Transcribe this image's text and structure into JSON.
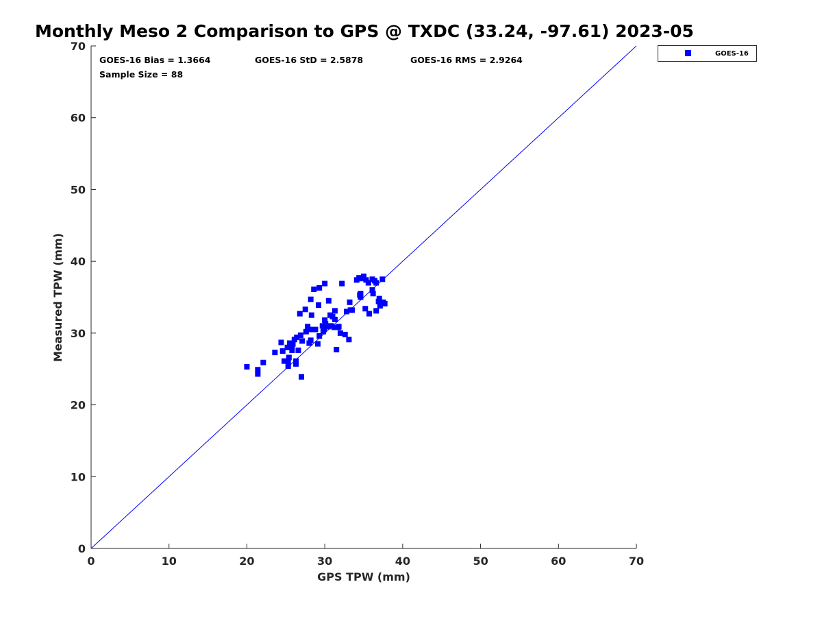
{
  "chart_data": {
    "type": "scatter",
    "title": "Monthly Meso 2 Comparison to GPS @ TXDC (33.24, -97.61) 2023-05",
    "xlabel": "GPS TPW (mm)",
    "ylabel": "Measured TPW (mm)",
    "xlim": [
      0,
      70
    ],
    "ylim": [
      0,
      70
    ],
    "xticks": [
      "0",
      "10",
      "20",
      "30",
      "40",
      "50",
      "60",
      "70"
    ],
    "yticks": [
      "0",
      "10",
      "20",
      "30",
      "40",
      "50",
      "60",
      "70"
    ],
    "grid": false,
    "legend": {
      "position": "outside-top-right",
      "entries": [
        "GOES-16"
      ]
    },
    "stats": {
      "bias": "GOES-16 Bias = 1.3664",
      "std": "GOES-16 StD = 2.5878",
      "rms": "GOES-16 RMS = 2.9264",
      "sample_size": "Sample Size = 88"
    },
    "reference_line": {
      "from": [
        0,
        0
      ],
      "to": [
        70,
        70
      ],
      "color": "#0000ff"
    },
    "series": [
      {
        "name": "GOES-16",
        "color": "#0000ff",
        "marker": "square",
        "points": [
          [
            20.0,
            25.3
          ],
          [
            21.4,
            24.3
          ],
          [
            21.4,
            24.9
          ],
          [
            22.1,
            25.9
          ],
          [
            23.6,
            27.3
          ],
          [
            24.4,
            28.7
          ],
          [
            24.6,
            27.5
          ],
          [
            24.8,
            26.1
          ],
          [
            25.2,
            28.0
          ],
          [
            25.3,
            26.1
          ],
          [
            25.3,
            25.4
          ],
          [
            25.5,
            28.6
          ],
          [
            25.4,
            26.6
          ],
          [
            25.8,
            27.6
          ],
          [
            25.8,
            28.2
          ],
          [
            25.9,
            28.5
          ],
          [
            26.1,
            29.1
          ],
          [
            26.3,
            25.7
          ],
          [
            26.3,
            26.1
          ],
          [
            26.4,
            29.4
          ],
          [
            26.6,
            27.6
          ],
          [
            26.8,
            32.7
          ],
          [
            26.9,
            29.7
          ],
          [
            27.0,
            23.9
          ],
          [
            27.1,
            28.9
          ],
          [
            27.5,
            33.3
          ],
          [
            27.6,
            30.2
          ],
          [
            27.8,
            30.9
          ],
          [
            28.0,
            28.6
          ],
          [
            28.1,
            30.5
          ],
          [
            28.2,
            29.0
          ],
          [
            28.2,
            34.7
          ],
          [
            28.3,
            32.5
          ],
          [
            28.6,
            36.1
          ],
          [
            28.8,
            30.5
          ],
          [
            29.1,
            28.5
          ],
          [
            29.2,
            33.9
          ],
          [
            29.3,
            29.6
          ],
          [
            29.3,
            36.3
          ],
          [
            29.7,
            31.0
          ],
          [
            29.8,
            30.2
          ],
          [
            29.9,
            30.5
          ],
          [
            30.0,
            31.8
          ],
          [
            30.0,
            36.9
          ],
          [
            30.1,
            31.3
          ],
          [
            30.2,
            30.9
          ],
          [
            30.4,
            30.9
          ],
          [
            30.5,
            34.5
          ],
          [
            30.7,
            32.5
          ],
          [
            30.8,
            31.0
          ],
          [
            31.0,
            32.3
          ],
          [
            31.2,
            30.8
          ],
          [
            31.3,
            31.9
          ],
          [
            31.3,
            33.1
          ],
          [
            31.5,
            27.7
          ],
          [
            31.7,
            30.8
          ],
          [
            31.8,
            30.9
          ],
          [
            32.0,
            30.0
          ],
          [
            32.2,
            36.9
          ],
          [
            32.6,
            29.8
          ],
          [
            32.8,
            33.0
          ],
          [
            33.1,
            29.1
          ],
          [
            33.2,
            34.3
          ],
          [
            33.5,
            33.2
          ],
          [
            34.1,
            37.4
          ],
          [
            34.4,
            37.7
          ],
          [
            34.6,
            35.5
          ],
          [
            34.6,
            35.0
          ],
          [
            34.8,
            37.6
          ],
          [
            35.0,
            37.9
          ],
          [
            35.2,
            33.4
          ],
          [
            35.3,
            37.4
          ],
          [
            35.6,
            37.0
          ],
          [
            35.7,
            32.7
          ],
          [
            36.1,
            37.5
          ],
          [
            36.1,
            36.0
          ],
          [
            36.2,
            35.5
          ],
          [
            36.4,
            37.3
          ],
          [
            36.6,
            37.0
          ],
          [
            36.6,
            33.1
          ],
          [
            36.9,
            34.4
          ],
          [
            37.0,
            34.8
          ],
          [
            37.1,
            33.8
          ],
          [
            37.4,
            37.5
          ],
          [
            37.5,
            34.3
          ],
          [
            37.7,
            34.1
          ],
          [
            34.5,
            35.3
          ],
          [
            33.3,
            33.2
          ]
        ]
      }
    ]
  }
}
